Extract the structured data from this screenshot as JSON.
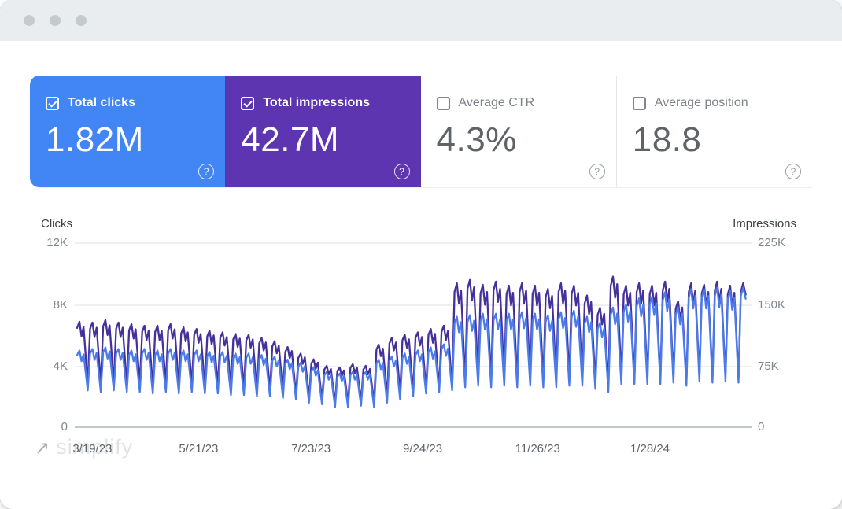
{
  "ui": {
    "help_glyph": "?"
  },
  "cards": [
    {
      "label": "Total clicks",
      "value": "1.82M",
      "checked": true,
      "bg": "#4285f4",
      "fg": "#ffffff"
    },
    {
      "label": "Total impressions",
      "value": "42.7M",
      "checked": true,
      "bg": "#5e35b1",
      "fg": "#ffffff"
    },
    {
      "label": "Average CTR",
      "value": "4.3%",
      "checked": false,
      "bg": "#ffffff",
      "fg": "#5f6368"
    },
    {
      "label": "Average position",
      "value": "18.8",
      "checked": false,
      "bg": "#ffffff",
      "fg": "#5f6368"
    }
  ],
  "watermark": {
    "arrow": "↗",
    "text": "simplify"
  },
  "chart_data": {
    "type": "line",
    "title": "",
    "grid": true,
    "legend": "none",
    "weeks": 52,
    "left_axis": {
      "label": "Clicks",
      "ticks": [
        "12K",
        "8K",
        "4K",
        "0"
      ],
      "max_k": 12
    },
    "right_axis": {
      "label": "Impressions",
      "ticks": [
        "225K",
        "150K",
        "75K",
        "0"
      ],
      "max_k": 225
    },
    "x_ticks": [
      {
        "label": "3/19/23",
        "f": 0.026
      },
      {
        "label": "5/21/23",
        "f": 0.183
      },
      {
        "label": "7/23/23",
        "f": 0.349
      },
      {
        "label": "9/24/23",
        "f": 0.514
      },
      {
        "label": "11/26/23",
        "f": 0.684
      },
      {
        "label": "1/28/24",
        "f": 0.85
      }
    ],
    "series": [
      {
        "name": "Impressions",
        "color": "#45309c",
        "axis_max_k": 225,
        "weekly_peaks_k": [
          129,
          128,
          131,
          128,
          126,
          124,
          124,
          126,
          122,
          120,
          118,
          116,
          114,
          113,
          109,
          105,
          98,
          90,
          83,
          75,
          73,
          77,
          75,
          101,
          109,
          113,
          116,
          120,
          124,
          176,
          180,
          174,
          178,
          173,
          176,
          173,
          169,
          176,
          173,
          161,
          146,
          184,
          173,
          176,
          173,
          178,
          154,
          176,
          174,
          178,
          173,
          176
        ],
        "weekly_valleys_k": [
          54,
          53,
          54,
          53,
          53,
          51,
          53,
          51,
          51,
          49,
          49,
          47,
          47,
          45,
          45,
          43,
          39,
          36,
          34,
          30,
          30,
          32,
          30,
          38,
          41,
          43,
          45,
          47,
          49,
          56,
          58,
          56,
          58,
          56,
          58,
          56,
          56,
          58,
          58,
          54,
          51,
          60,
          58,
          60,
          58,
          62,
          56,
          62,
          60,
          62,
          60,
          62
        ]
      },
      {
        "name": "Clicks",
        "color": "#4b7bea",
        "axis_max_k": 12,
        "weekly_peaks_k": [
          5.0,
          5.1,
          5.2,
          5.1,
          5.0,
          5.1,
          5.0,
          5.1,
          5.0,
          5.0,
          4.9,
          4.9,
          4.8,
          4.8,
          4.7,
          4.6,
          4.4,
          4.2,
          3.9,
          3.6,
          3.5,
          3.6,
          3.6,
          4.4,
          4.6,
          4.8,
          5.0,
          5.2,
          5.4,
          7.2,
          7.3,
          7.4,
          7.4,
          7.4,
          7.5,
          7.4,
          7.3,
          7.5,
          7.6,
          7.2,
          6.8,
          7.8,
          8.0,
          8.4,
          8.5,
          8.8,
          7.8,
          9.0,
          9.0,
          9.1,
          8.9,
          9.1
        ],
        "weekly_valleys_k": [
          2.4,
          2.3,
          2.4,
          2.3,
          2.3,
          2.2,
          2.3,
          2.2,
          2.3,
          2.2,
          2.2,
          2.1,
          2.1,
          2.0,
          2.0,
          1.9,
          1.8,
          1.6,
          1.5,
          1.3,
          1.3,
          1.4,
          1.3,
          1.6,
          1.8,
          2.0,
          2.2,
          2.3,
          2.4,
          2.6,
          2.7,
          2.6,
          2.7,
          2.6,
          2.7,
          2.6,
          2.6,
          2.7,
          2.7,
          2.5,
          2.3,
          2.8,
          2.8,
          2.8,
          2.8,
          2.9,
          2.7,
          3.0,
          2.9,
          3.0,
          2.9,
          3.0
        ]
      }
    ]
  }
}
